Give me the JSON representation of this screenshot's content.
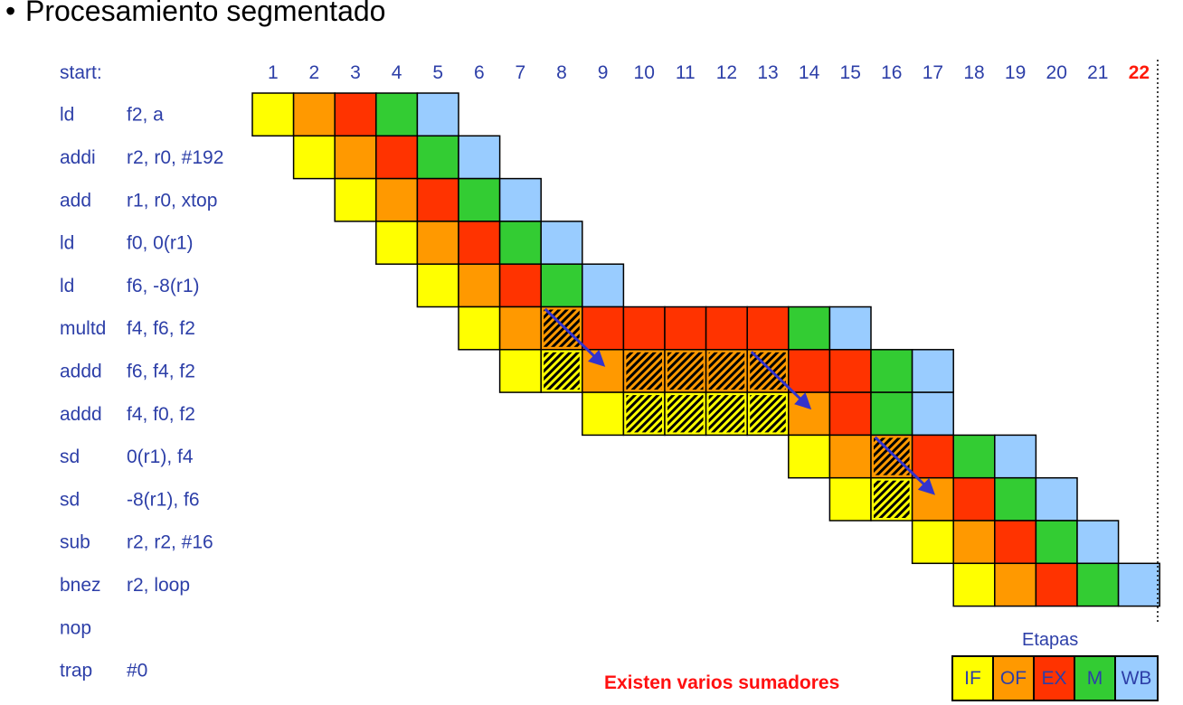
{
  "title": "Procesamiento segmentado",
  "start_label": "start:",
  "cycles": [
    "1",
    "2",
    "3",
    "4",
    "5",
    "6",
    "7",
    "8",
    "9",
    "10",
    "11",
    "12",
    "13",
    "14",
    "15",
    "16",
    "17",
    "18",
    "19",
    "20",
    "21",
    "22"
  ],
  "highlight_cycle": "22",
  "instructions": [
    {
      "op": "ld",
      "args": "f2, a",
      "start": 1,
      "stages": [
        "IF",
        "OF",
        "EX",
        "M",
        "WB"
      ]
    },
    {
      "op": "addi",
      "args": "r2, r0, #192",
      "start": 2,
      "stages": [
        "IF",
        "OF",
        "EX",
        "M",
        "WB"
      ]
    },
    {
      "op": "add",
      "args": "r1, r0, xtop",
      "start": 3,
      "stages": [
        "IF",
        "OF",
        "EX",
        "M",
        "WB"
      ]
    },
    {
      "op": "ld",
      "args": "f0, 0(r1)",
      "start": 4,
      "stages": [
        "IF",
        "OF",
        "EX",
        "M",
        "WB"
      ]
    },
    {
      "op": "ld",
      "args": "f6, -8(r1)",
      "start": 5,
      "stages": [
        "IF",
        "OF",
        "EX",
        "M",
        "WB"
      ]
    },
    {
      "op": "multd",
      "args": "f4, f6, f2",
      "start": 6,
      "stages": [
        "IF",
        "OF",
        "OF*",
        "EX",
        "EX",
        "EX",
        "EX",
        "EX",
        "M",
        "WB"
      ]
    },
    {
      "op": "addd",
      "args": "f6, f4, f2",
      "start": 7,
      "stages": [
        "IF",
        "IF*",
        "OF",
        "OF*",
        "OF*",
        "OF*",
        "OF*",
        "EX",
        "EX",
        "M",
        "WB"
      ]
    },
    {
      "op": "addd",
      "args": "f4, f0, f2",
      "start": 9,
      "stages": [
        "IF",
        "IF*",
        "IF*",
        "IF*",
        "IF*",
        "OF",
        "EX",
        "M",
        "WB"
      ]
    },
    {
      "op": "sd",
      "args": "0(r1), f4",
      "start": 14,
      "stages": [
        "IF",
        "OF",
        "OF*",
        "EX",
        "M",
        "WB"
      ]
    },
    {
      "op": "sd",
      "args": "-8(r1), f6",
      "start": 15,
      "stages": [
        "IF",
        "IF*",
        "OF",
        "EX",
        "M",
        "WB"
      ]
    },
    {
      "op": "sub",
      "args": "r2, r2, #16",
      "start": 17,
      "stages": [
        "IF",
        "OF",
        "EX",
        "M",
        "WB"
      ]
    },
    {
      "op": "bnez",
      "args": "r2, loop",
      "start": 18,
      "stages": [
        "IF",
        "OF",
        "EX",
        "M",
        "WB"
      ]
    },
    {
      "op": "nop",
      "args": "",
      "start": 0,
      "stages": []
    },
    {
      "op": "trap",
      "args": "#0",
      "start": 0,
      "stages": []
    }
  ],
  "forwarding_arrows": [
    {
      "from_row": 5,
      "from_cycle": 8,
      "to_row": 6,
      "to_cycle": 9
    },
    {
      "from_row": 6,
      "from_cycle": 13,
      "to_row": 7,
      "to_cycle": 14
    },
    {
      "from_row": 8,
      "from_cycle": 16,
      "to_row": 9,
      "to_cycle": 17
    }
  ],
  "stage_colors": {
    "IF": "#ffff00",
    "OF": "#ff9900",
    "EX": "#ff3300",
    "M": "#33cc33",
    "WB": "#99ccff"
  },
  "arrow_color": "#3333cc",
  "note": "Existen varios sumadores",
  "legend_title": "Etapas",
  "legend": [
    {
      "label": "IF",
      "color": "#ffff00",
      "text_color": "#2d3fa8"
    },
    {
      "label": "OF",
      "color": "#ff9900",
      "text_color": "#2d3fa8"
    },
    {
      "label": "EX",
      "color": "#ff3300",
      "text_color": "#2d3fa8"
    },
    {
      "label": "M",
      "color": "#33cc33",
      "text_color": "#2d3fa8"
    },
    {
      "label": "WB",
      "color": "#99ccff",
      "text_color": "#2d3fa8"
    }
  ]
}
